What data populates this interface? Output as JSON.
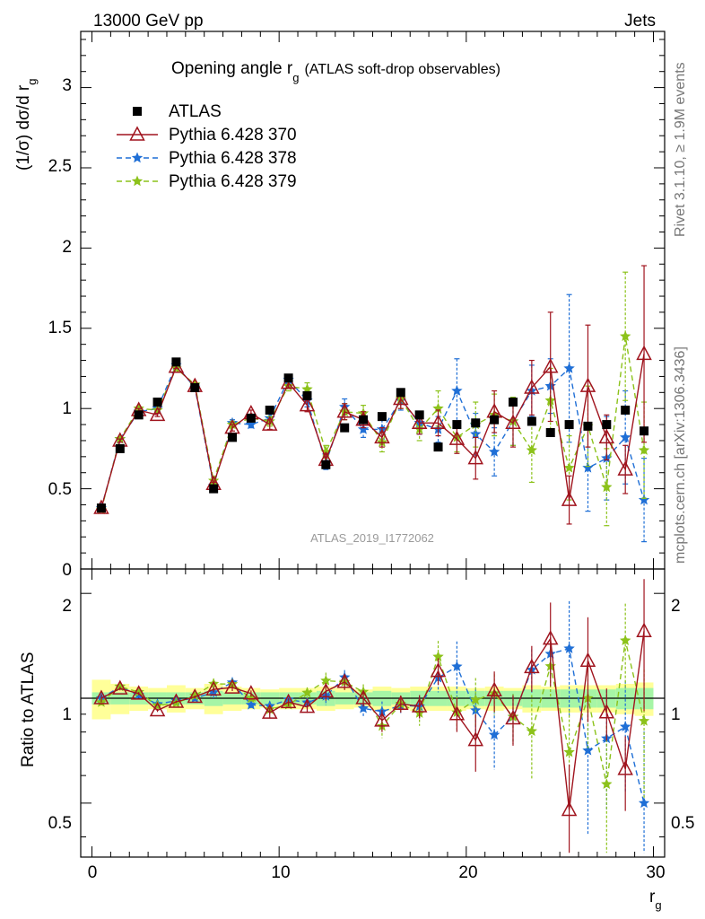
{
  "header": {
    "left": "13000 GeV pp",
    "right": "Jets"
  },
  "side": {
    "rivet": "Rivet 3.1.10, ≥ 1.9M events",
    "mcplots": "mcplots.cern.ch [arXiv:1306.3436]"
  },
  "chart_data": {
    "type": "scatter",
    "title_main": "Opening angle r",
    "title_sub": "g",
    "title_rest": "(ATLAS soft-drop observables)",
    "ylabel_main": "(1/σ) dσ/d r",
    "ylabel_sub": "g",
    "ratio_ylabel": "Ratio to ATLAS",
    "xlabel_main": "r",
    "xlabel_sub": "g",
    "watermark": "ATLAS_2019_I1772062",
    "xlim": [
      -0.6,
      30.6
    ],
    "ylim_main": [
      0,
      3.35
    ],
    "ylim_ratio": [
      0.35,
      2.35
    ],
    "x_ticks": [
      "0",
      "10",
      "20",
      "30"
    ],
    "y_ticks_main": [
      "0",
      "0.5",
      "1",
      "1.5",
      "2",
      "2.5",
      "3"
    ],
    "y_ticks_ratio": [
      "0.5",
      "1",
      "2"
    ],
    "x": [
      0.5,
      1.5,
      2.5,
      3.5,
      4.5,
      5.5,
      6.5,
      7.5,
      8.5,
      9.5,
      10.5,
      11.5,
      12.5,
      13.5,
      14.5,
      15.5,
      16.5,
      17.5,
      18.5,
      19.5,
      20.5,
      21.5,
      22.5,
      23.5,
      24.5,
      25.5,
      26.5,
      27.5,
      28.5,
      29.5
    ],
    "legend": [
      "ATLAS",
      "Pythia 6.428 370",
      "Pythia 6.428 378",
      "Pythia 6.428 379"
    ],
    "series": [
      {
        "name": "ATLAS",
        "color": "#000000",
        "marker": "square",
        "values": [
          0.38,
          0.75,
          0.96,
          1.04,
          1.29,
          1.13,
          0.5,
          0.82,
          0.94,
          0.99,
          1.19,
          1.08,
          0.65,
          0.88,
          0.93,
          0.95,
          1.1,
          0.96,
          0.76,
          0.9,
          0.91,
          0.93,
          1.04,
          0.92,
          0.85,
          0.9,
          0.89,
          0.9,
          0.99,
          0.86
        ],
        "err": [
          0,
          0,
          0,
          0,
          0,
          0,
          0,
          0,
          0,
          0,
          0,
          0,
          0,
          0,
          0,
          0,
          0,
          0,
          0,
          0,
          0,
          0,
          0,
          0,
          0,
          0,
          0,
          0,
          0,
          0
        ],
        "band_inner": [
          0.04,
          0.04,
          0.04,
          0.04,
          0.04,
          0.04,
          0.05,
          0.04,
          0.04,
          0.04,
          0.04,
          0.04,
          0.05,
          0.04,
          0.04,
          0.05,
          0.04,
          0.05,
          0.05,
          0.05,
          0.05,
          0.05,
          0.05,
          0.06,
          0.06,
          0.06,
          0.06,
          0.06,
          0.07,
          0.07
        ],
        "band_outer": [
          0.13,
          0.1,
          0.08,
          0.07,
          0.09,
          0.07,
          0.1,
          0.08,
          0.07,
          0.06,
          0.07,
          0.07,
          0.08,
          0.07,
          0.06,
          0.08,
          0.07,
          0.08,
          0.08,
          0.08,
          0.07,
          0.08,
          0.07,
          0.09,
          0.08,
          0.09,
          0.09,
          0.09,
          0.1,
          0.11
        ]
      },
      {
        "name": "Pythia 6.428 370",
        "color": "#a0141e",
        "marker": "triangle",
        "dash": "",
        "values": [
          0.38,
          0.8,
          0.99,
          0.96,
          1.26,
          1.14,
          0.53,
          0.88,
          0.97,
          0.9,
          1.16,
          1.02,
          0.68,
          0.98,
          0.93,
          0.82,
          1.06,
          0.91,
          0.91,
          0.81,
          0.69,
          0.98,
          0.91,
          1.13,
          1.26,
          0.43,
          1.14,
          0.82,
          0.62,
          1.34
        ],
        "err": [
          0.01,
          0.01,
          0.01,
          0.01,
          0.01,
          0.01,
          0.01,
          0.02,
          0.02,
          0.03,
          0.03,
          0.04,
          0.04,
          0.05,
          0.05,
          0.06,
          0.06,
          0.07,
          0.08,
          0.09,
          0.13,
          0.13,
          0.15,
          0.17,
          0.34,
          0.15,
          0.38,
          0.14,
          0.15,
          0.55
        ]
      },
      {
        "name": "Pythia 6.428 378",
        "color": "#1f6fd6",
        "marker": "star",
        "dash": "6,4",
        "values": [
          0.38,
          0.81,
          0.98,
          1.0,
          1.27,
          1.13,
          0.52,
          0.91,
          0.9,
          0.94,
          1.18,
          1.05,
          0.66,
          1.01,
          0.87,
          0.87,
          1.05,
          0.91,
          0.87,
          1.11,
          0.84,
          0.73,
          0.92,
          1.11,
          1.14,
          1.25,
          0.63,
          0.69,
          0.82,
          0.43
        ],
        "err": [
          0.01,
          0.01,
          0.01,
          0.01,
          0.01,
          0.01,
          0.02,
          0.02,
          0.02,
          0.03,
          0.03,
          0.04,
          0.04,
          0.05,
          0.05,
          0.06,
          0.06,
          0.07,
          0.08,
          0.2,
          0.13,
          0.15,
          0.15,
          0.16,
          0.17,
          0.46,
          0.27,
          0.26,
          0.29,
          0.26
        ]
      },
      {
        "name": "Pythia 6.428 379",
        "color": "#8cc21a",
        "marker": "star",
        "dash": "6,4",
        "values": [
          0.37,
          0.81,
          1.0,
          0.99,
          1.25,
          1.15,
          0.55,
          0.9,
          0.94,
          0.92,
          1.14,
          1.12,
          0.73,
          0.98,
          0.97,
          0.79,
          1.06,
          0.87,
          1.0,
          0.82,
          0.9,
          0.96,
          0.92,
          0.74,
          1.05,
          0.63,
          0.89,
          0.51,
          1.45,
          0.74
        ],
        "err": [
          0.01,
          0.01,
          0.01,
          0.01,
          0.01,
          0.01,
          0.02,
          0.02,
          0.02,
          0.03,
          0.03,
          0.04,
          0.04,
          0.05,
          0.05,
          0.06,
          0.06,
          0.07,
          0.11,
          0.09,
          0.14,
          0.13,
          0.15,
          0.2,
          0.2,
          0.2,
          0.25,
          0.24,
          0.4,
          0.3
        ]
      }
    ]
  }
}
